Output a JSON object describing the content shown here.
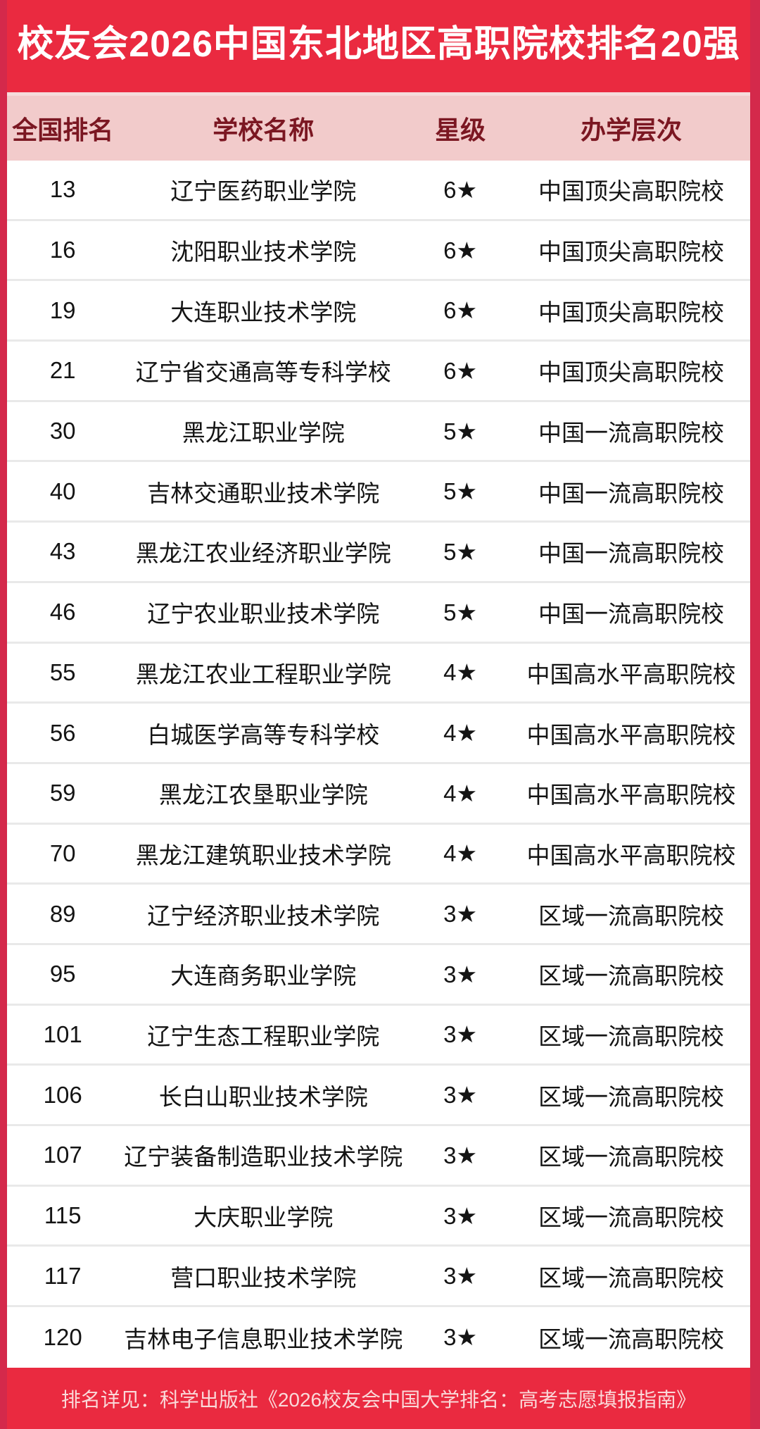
{
  "title": "校友会2026中国东北地区高职院校排名20强",
  "columns": {
    "rank": "全国排名",
    "school": "学校名称",
    "star": "星级",
    "level": "办学层次"
  },
  "rows": [
    {
      "rank": "13",
      "school": "辽宁医药职业学院",
      "star": "6★",
      "level": "中国顶尖高职院校"
    },
    {
      "rank": "16",
      "school": "沈阳职业技术学院",
      "star": "6★",
      "level": "中国顶尖高职院校"
    },
    {
      "rank": "19",
      "school": "大连职业技术学院",
      "star": "6★",
      "level": "中国顶尖高职院校"
    },
    {
      "rank": "21",
      "school": "辽宁省交通高等专科学校",
      "star": "6★",
      "level": "中国顶尖高职院校"
    },
    {
      "rank": "30",
      "school": "黑龙江职业学院",
      "star": "5★",
      "level": "中国一流高职院校"
    },
    {
      "rank": "40",
      "school": "吉林交通职业技术学院",
      "star": "5★",
      "level": "中国一流高职院校"
    },
    {
      "rank": "43",
      "school": "黑龙江农业经济职业学院",
      "star": "5★",
      "level": "中国一流高职院校"
    },
    {
      "rank": "46",
      "school": "辽宁农业职业技术学院",
      "star": "5★",
      "level": "中国一流高职院校"
    },
    {
      "rank": "55",
      "school": "黑龙江农业工程职业学院",
      "star": "4★",
      "level": "中国高水平高职院校"
    },
    {
      "rank": "56",
      "school": "白城医学高等专科学校",
      "star": "4★",
      "level": "中国高水平高职院校"
    },
    {
      "rank": "59",
      "school": "黑龙江农垦职业学院",
      "star": "4★",
      "level": "中国高水平高职院校"
    },
    {
      "rank": "70",
      "school": "黑龙江建筑职业技术学院",
      "star": "4★",
      "level": "中国高水平高职院校"
    },
    {
      "rank": "89",
      "school": "辽宁经济职业技术学院",
      "star": "3★",
      "level": "区域一流高职院校"
    },
    {
      "rank": "95",
      "school": "大连商务职业学院",
      "star": "3★",
      "level": "区域一流高职院校"
    },
    {
      "rank": "101",
      "school": "辽宁生态工程职业学院",
      "star": "3★",
      "level": "区域一流高职院校"
    },
    {
      "rank": "106",
      "school": "长白山职业技术学院",
      "star": "3★",
      "level": "区域一流高职院校"
    },
    {
      "rank": "107",
      "school": "辽宁装备制造职业技术学院",
      "star": "3★",
      "level": "区域一流高职院校"
    },
    {
      "rank": "115",
      "school": "大庆职业学院",
      "star": "3★",
      "level": "区域一流高职院校"
    },
    {
      "rank": "117",
      "school": "营口职业技术学院",
      "star": "3★",
      "level": "区域一流高职院校"
    },
    {
      "rank": "120",
      "school": "吉林电子信息职业技术学院",
      "star": "3★",
      "level": "区域一流高职院校"
    }
  ],
  "footer": "排名详见：科学出版社《2026校友会中国大学排名：高考志愿填报指南》",
  "colors": {
    "band_red": "#ea2a40",
    "side_border_red": "#d4294b",
    "header_pink": "#f2cbcb",
    "header_text_maroon": "#7b1722",
    "row_text": "#141414",
    "row_divider": "#e9e9e9",
    "title_text": "#ffffff",
    "footer_text": "#fad9d9"
  }
}
